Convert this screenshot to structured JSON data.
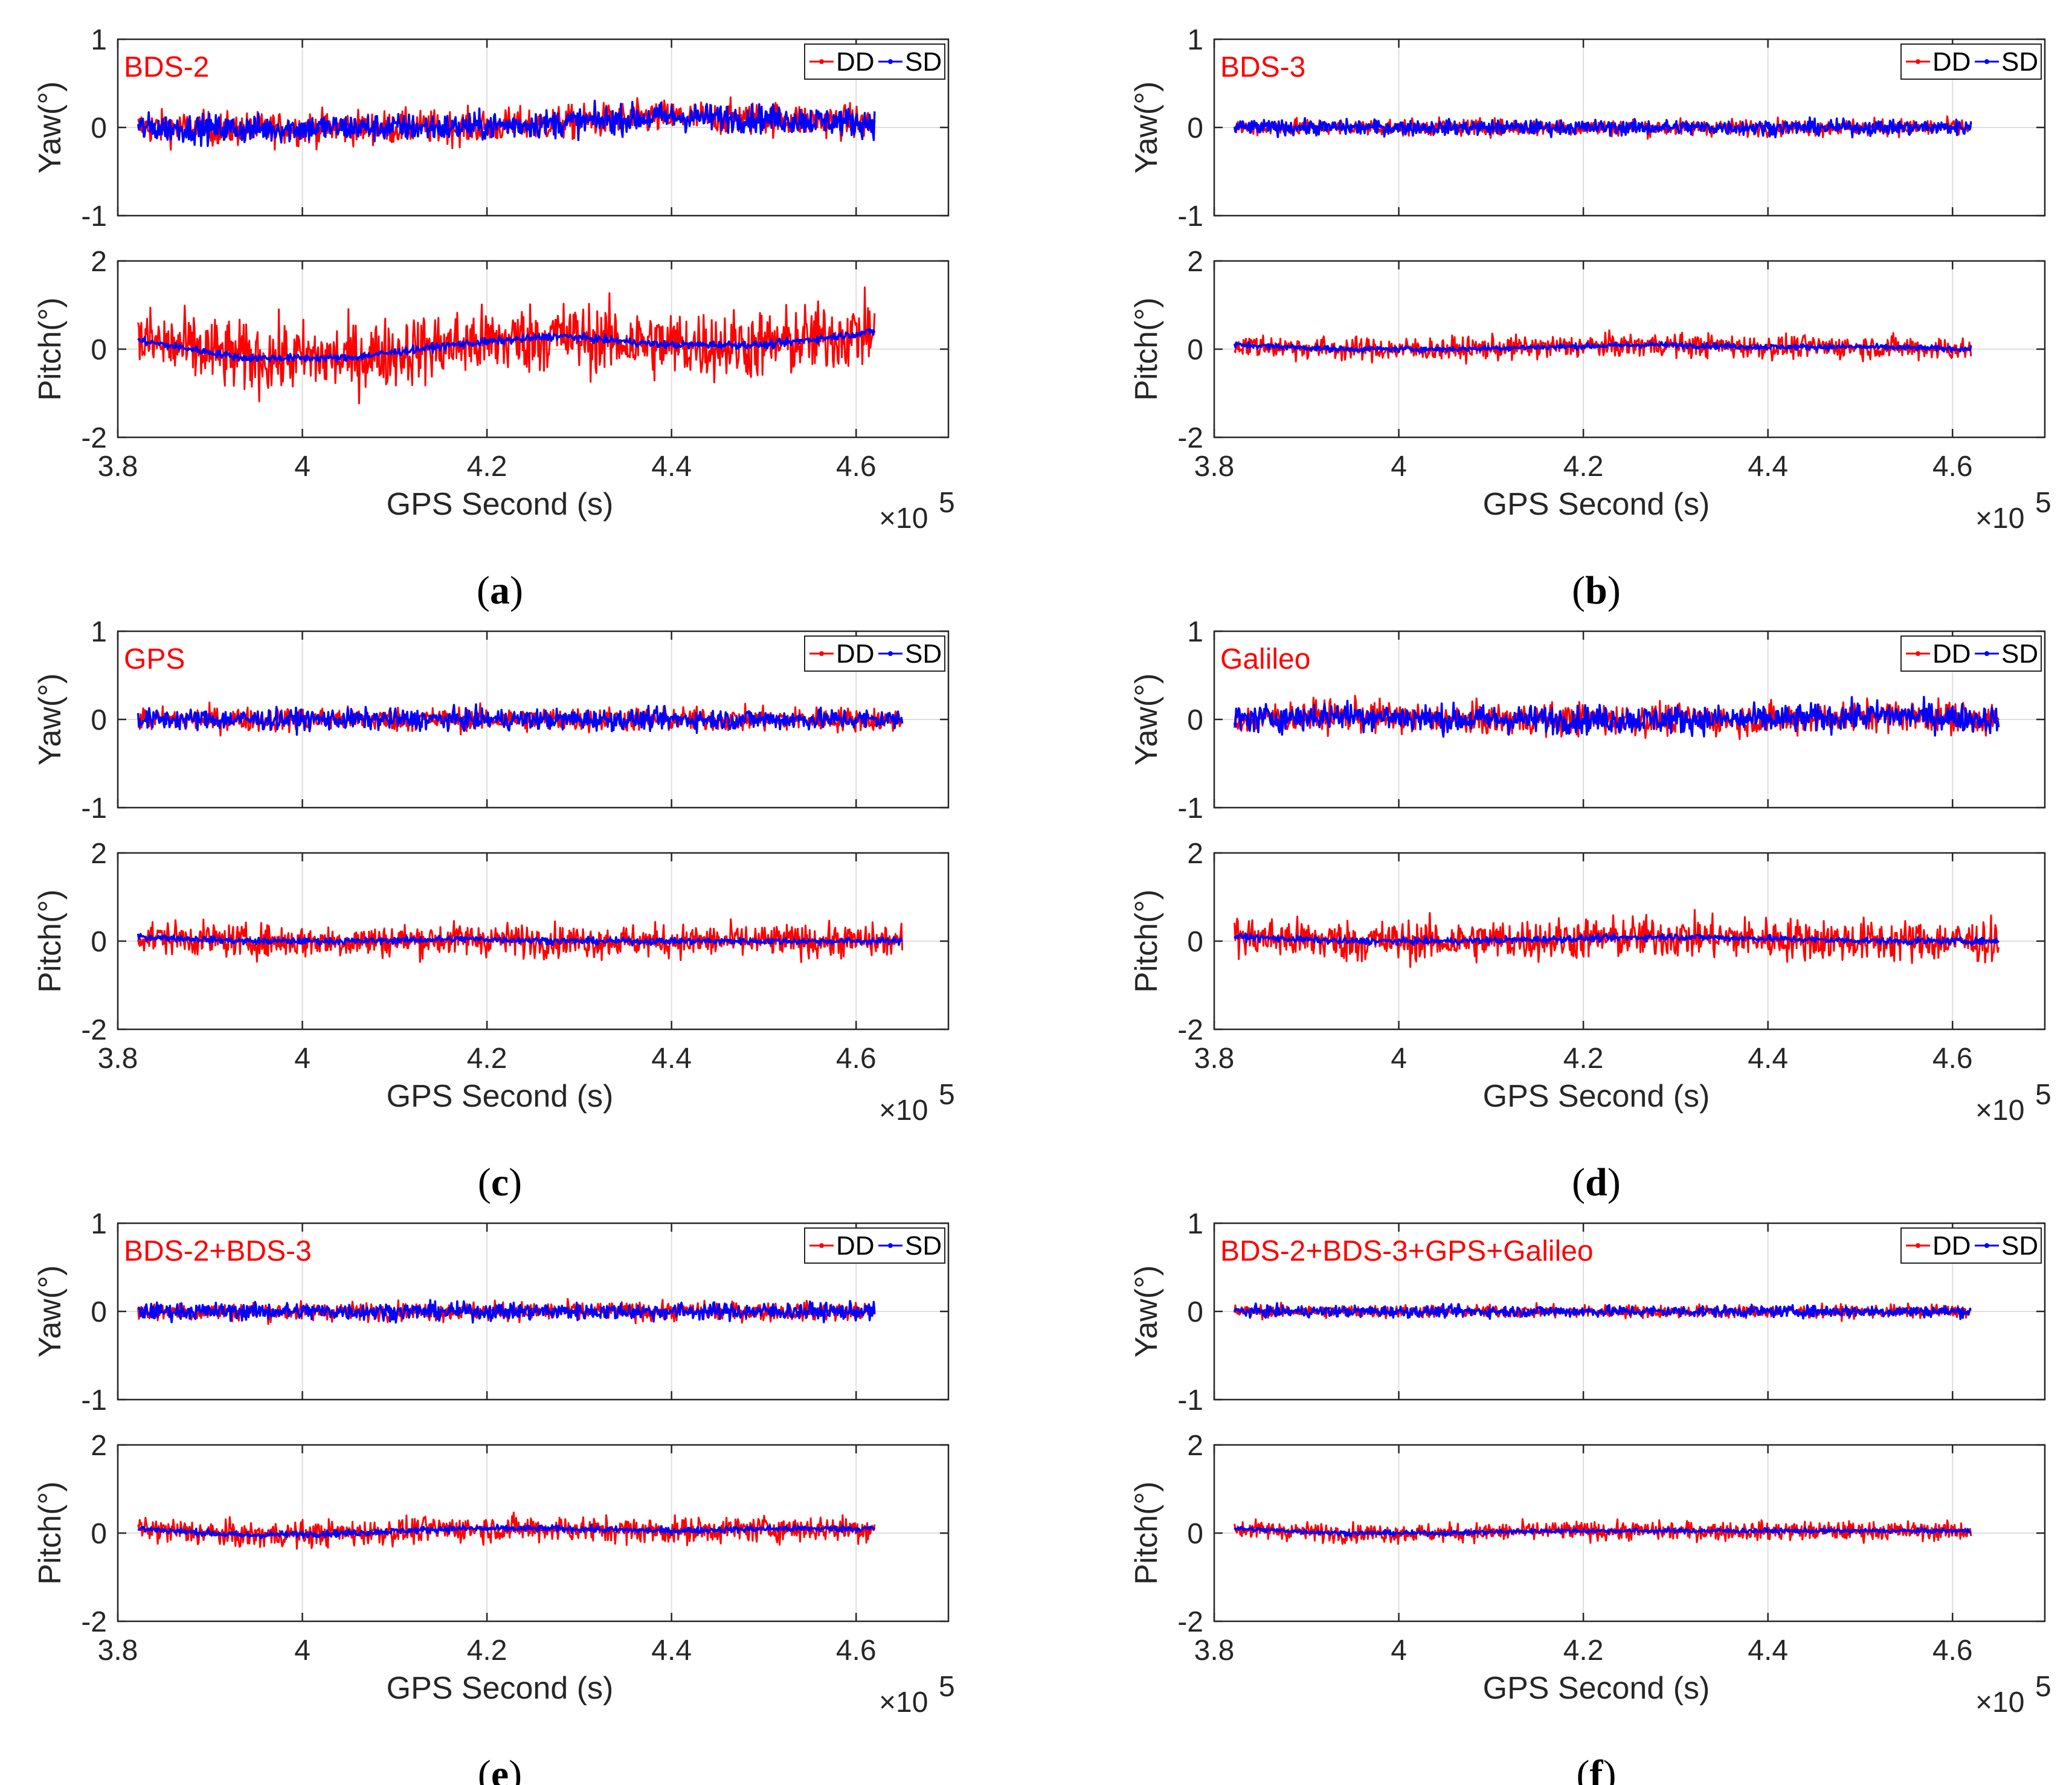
{
  "colors": {
    "dd": "#ff0000",
    "sd": "#0000ff",
    "title": "#ff0000",
    "grid": "#dedede",
    "axis": "#262626"
  },
  "chart_data": [
    {
      "type": "line",
      "panel": "a",
      "caption_letter": "a",
      "title": "BDS-2",
      "legend": [
        "DD",
        "SD"
      ],
      "xlabel": "GPS Second (s)",
      "x_exponent_base": "×10",
      "x_exponent_power": "5",
      "xlim": [
        3.8,
        4.7
      ],
      "x_end": 4.62,
      "x_ticks": [
        "3.8",
        "4",
        "4.2",
        "4.4",
        "4.6"
      ],
      "subplots": [
        {
          "ylabel": "Yaw(°)",
          "ylim": [
            -1,
            1
          ],
          "y_ticks": [
            "1",
            "0",
            "-1"
          ],
          "series": [
            {
              "name": "DD",
              "amp": 0.18,
              "mean": [
                0,
                -0.02,
                0,
                0,
                0.05,
                0.12,
                0.1,
                0.05
              ]
            },
            {
              "name": "SD",
              "amp": 0.15,
              "mean": [
                0,
                -0.02,
                0,
                0,
                0.05,
                0.12,
                0.1,
                0.05
              ]
            }
          ]
        },
        {
          "ylabel": "Pitch(°)",
          "ylim": [
            -2,
            2
          ],
          "y_ticks": [
            "2",
            "0",
            "-2"
          ],
          "series": [
            {
              "name": "DD",
              "amp": 0.75,
              "mean": [
                0.2,
                -0.2,
                -0.2,
                0.1,
                0.3,
                0.1,
                0.1,
                0.4
              ]
            },
            {
              "name": "SD",
              "amp": 0.08,
              "mean": [
                0.2,
                -0.2,
                -0.2,
                0.1,
                0.3,
                0.1,
                0.1,
                0.4
              ]
            }
          ]
        }
      ]
    },
    {
      "type": "line",
      "panel": "b",
      "caption_letter": "b",
      "title": "BDS-3",
      "legend": [
        "DD",
        "SD"
      ],
      "xlabel": "GPS Second (s)",
      "x_exponent_base": "×10",
      "x_exponent_power": "5",
      "xlim": [
        3.8,
        4.7
      ],
      "x_end": 4.62,
      "x_ticks": [
        "3.8",
        "4",
        "4.2",
        "4.4",
        "4.6"
      ],
      "subplots": [
        {
          "ylabel": "Yaw(°)",
          "ylim": [
            -1,
            1
          ],
          "y_ticks": [
            "1",
            "0",
            "-1"
          ],
          "series": [
            {
              "name": "DD",
              "amp": 0.09,
              "mean": [
                0,
                0,
                0,
                0,
                0,
                0,
                0,
                0
              ]
            },
            {
              "name": "SD",
              "amp": 0.08,
              "mean": [
                0,
                0,
                0,
                0,
                0,
                0,
                0,
                0
              ]
            }
          ]
        },
        {
          "ylabel": "Pitch(°)",
          "ylim": [
            -2,
            2
          ],
          "y_ticks": [
            "2",
            "0",
            "-2"
          ],
          "series": [
            {
              "name": "DD",
              "amp": 0.25,
              "mean": [
                0.1,
                0,
                0,
                0.05,
                0.1,
                0.05,
                0.05,
                0
              ]
            },
            {
              "name": "SD",
              "amp": 0.06,
              "mean": [
                0.1,
                0,
                0,
                0.05,
                0.1,
                0.05,
                0.05,
                0
              ]
            }
          ]
        }
      ]
    },
    {
      "type": "line",
      "panel": "c",
      "caption_letter": "c",
      "title": "GPS",
      "legend": [
        "DD",
        "SD"
      ],
      "xlabel": "GPS Second (s)",
      "x_exponent_base": "×10",
      "x_exponent_power": "5",
      "xlim": [
        3.8,
        4.7
      ],
      "x_end": 4.65,
      "x_ticks": [
        "3.8",
        "4",
        "4.2",
        "4.4",
        "4.6"
      ],
      "subplots": [
        {
          "ylabel": "Yaw(°)",
          "ylim": [
            -1,
            1
          ],
          "y_ticks": [
            "1",
            "0",
            "-1"
          ],
          "series": [
            {
              "name": "DD",
              "amp": 0.13,
              "mean": [
                0,
                0,
                0,
                0,
                0,
                0,
                0,
                0
              ]
            },
            {
              "name": "SD",
              "amp": 0.11,
              "mean": [
                0,
                0,
                0,
                0,
                0,
                0,
                0,
                0
              ]
            }
          ]
        },
        {
          "ylabel": "Pitch(°)",
          "ylim": [
            -2,
            2
          ],
          "y_ticks": [
            "2",
            "0",
            "-2"
          ],
          "series": [
            {
              "name": "DD",
              "amp": 0.35,
              "mean": [
                0.1,
                0,
                0,
                0.05,
                0,
                0,
                0,
                0
              ]
            },
            {
              "name": "SD",
              "amp": 0.07,
              "mean": [
                0.1,
                0,
                0,
                0.05,
                0,
                0,
                0,
                0
              ]
            }
          ]
        }
      ]
    },
    {
      "type": "line",
      "panel": "d",
      "caption_letter": "d",
      "title": "Galileo",
      "legend": [
        "DD",
        "SD"
      ],
      "xlabel": "GPS Second (s)",
      "x_exponent_base": "×10",
      "x_exponent_power": "5",
      "xlim": [
        3.8,
        4.7
      ],
      "x_end": 4.65,
      "x_ticks": [
        "3.8",
        "4",
        "4.2",
        "4.4",
        "4.6"
      ],
      "subplots": [
        {
          "ylabel": "Yaw(°)",
          "ylim": [
            -1,
            1
          ],
          "y_ticks": [
            "1",
            "0",
            "-1"
          ],
          "series": [
            {
              "name": "DD",
              "amp": 0.17,
              "mean": [
                0,
                0.05,
                0,
                0,
                0,
                0,
                0.05,
                0
              ]
            },
            {
              "name": "SD",
              "amp": 0.15,
              "mean": [
                0,
                0.05,
                0,
                0,
                0,
                0,
                0.05,
                0
              ]
            }
          ]
        },
        {
          "ylabel": "Pitch(°)",
          "ylim": [
            -2,
            2
          ],
          "y_ticks": [
            "2",
            "0",
            "-2"
          ],
          "series": [
            {
              "name": "DD",
              "amp": 0.45,
              "mean": [
                0.1,
                0,
                0,
                0.05,
                0.1,
                0.05,
                0,
                0
              ]
            },
            {
              "name": "SD",
              "amp": 0.07,
              "mean": [
                0.1,
                0,
                0,
                0.05,
                0.1,
                0.05,
                0,
                0
              ]
            }
          ]
        }
      ]
    },
    {
      "type": "line",
      "panel": "e",
      "caption_letter": "e",
      "title": "BDS-2+BDS-3",
      "legend": [
        "DD",
        "SD"
      ],
      "xlabel": "GPS Second (s)",
      "x_exponent_base": "×10",
      "x_exponent_power": "5",
      "xlim": [
        3.8,
        4.7
      ],
      "x_end": 4.62,
      "x_ticks": [
        "3.8",
        "4",
        "4.2",
        "4.4",
        "4.6"
      ],
      "subplots": [
        {
          "ylabel": "Yaw(°)",
          "ylim": [
            -1,
            1
          ],
          "y_ticks": [
            "1",
            "0",
            "-1"
          ],
          "series": [
            {
              "name": "DD",
              "amp": 0.1,
              "mean": [
                0,
                0,
                0,
                0,
                0,
                0,
                0,
                0
              ]
            },
            {
              "name": "SD",
              "amp": 0.09,
              "mean": [
                0,
                0,
                0,
                0,
                0,
                0,
                0,
                0
              ]
            }
          ]
        },
        {
          "ylabel": "Pitch(°)",
          "ylim": [
            -2,
            2
          ],
          "y_ticks": [
            "2",
            "0",
            "-2"
          ],
          "series": [
            {
              "name": "DD",
              "amp": 0.28,
              "mean": [
                0.1,
                -0.05,
                0,
                0.1,
                0.1,
                0.05,
                0.1,
                0.1
              ]
            },
            {
              "name": "SD",
              "amp": 0.07,
              "mean": [
                0.1,
                -0.05,
                0,
                0.1,
                0.1,
                0.05,
                0.1,
                0.1
              ]
            }
          ]
        }
      ]
    },
    {
      "type": "line",
      "panel": "f",
      "caption_letter": "f",
      "title": "BDS-2+BDS-3+GPS+Galileo",
      "legend": [
        "DD",
        "SD"
      ],
      "xlabel": "GPS Second (s)",
      "x_exponent_base": "×10",
      "x_exponent_power": "5",
      "xlim": [
        3.8,
        4.7
      ],
      "x_end": 4.62,
      "x_ticks": [
        "3.8",
        "4",
        "4.2",
        "4.4",
        "4.6"
      ],
      "subplots": [
        {
          "ylabel": "Yaw(°)",
          "ylim": [
            -1,
            1
          ],
          "y_ticks": [
            "1",
            "0",
            "-1"
          ],
          "series": [
            {
              "name": "DD",
              "amp": 0.07,
              "mean": [
                0,
                0,
                0,
                0,
                0,
                0,
                0,
                0
              ]
            },
            {
              "name": "SD",
              "amp": 0.06,
              "mean": [
                0,
                0,
                0,
                0,
                0,
                0,
                0,
                0
              ]
            }
          ]
        },
        {
          "ylabel": "Pitch(°)",
          "ylim": [
            -2,
            2
          ],
          "y_ticks": [
            "2",
            "0",
            "-2"
          ],
          "series": [
            {
              "name": "DD",
              "amp": 0.2,
              "mean": [
                0.1,
                0,
                0,
                0.05,
                0.05,
                0.05,
                0.05,
                0.05
              ]
            },
            {
              "name": "SD",
              "amp": 0.05,
              "mean": [
                0.1,
                0,
                0,
                0.05,
                0.05,
                0.05,
                0.05,
                0.05
              ]
            }
          ]
        }
      ]
    }
  ]
}
